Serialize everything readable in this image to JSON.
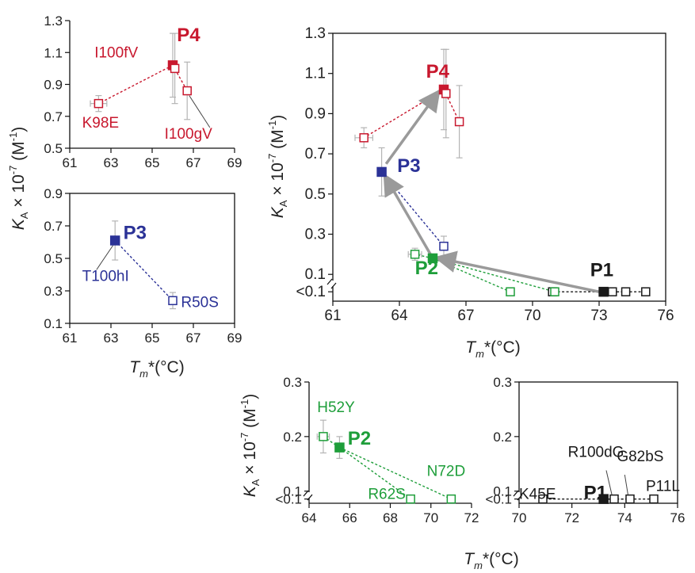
{
  "axis_labels": {
    "ka": "K",
    "ka_sub": "A",
    "ka_rest": " × 10",
    "ka_exp": "-7",
    "ka_unit": " (M",
    "ka_unit_exp": "-1",
    "ka_close": ")",
    "tm": "T",
    "tm_sub": "m",
    "tm_rest": "*(°C)"
  },
  "colors": {
    "P1": "#1a1a1a",
    "P2": "#1e9e3a",
    "P3": "#2b3297",
    "P4": "#c8182e",
    "arrow": "#9a9a9a",
    "errorbar": "#b4b4b4"
  },
  "chart_data": [
    {
      "type": "scatter",
      "panel": "main",
      "xlabel": "Tm*(°C)",
      "ylabel": "KA × 10-7 (M-1)",
      "xlim": [
        61,
        76
      ],
      "ylim": [
        0.05,
        1.3
      ],
      "x_ticks": [
        "61",
        "64",
        "67",
        "70",
        "73",
        "76"
      ],
      "x_tick_values": [
        61,
        64,
        67,
        70,
        73,
        76
      ],
      "y_ticks": [
        "<0.1",
        "0.1",
        "0.3",
        "0.5",
        "0.7",
        "0.9",
        "1.1",
        "1.3"
      ],
      "y_tick_values": [
        0.05,
        0.1,
        0.3,
        0.5,
        0.7,
        0.9,
        1.1,
        1.3
      ],
      "axis_break_y": true,
      "labels": [
        {
          "text": "P4",
          "x": 65.2,
          "y": 1.08,
          "color": "P4"
        },
        {
          "text": "P3",
          "x": 63.9,
          "y": 0.61,
          "color": "P3"
        },
        {
          "text": "P2",
          "x": 64.7,
          "y": 0.1,
          "color": "P2"
        },
        {
          "text": "P1",
          "x": 72.6,
          "y": 0.09,
          "color": "P1"
        }
      ],
      "series": [
        {
          "name": "P1",
          "color": "P1",
          "parent": [
            73.2,
            0.05
          ],
          "points": [
            {
              "x": 73.2,
              "y": 0.05,
              "filled": true
            },
            {
              "x": 70.9,
              "y": 0.05
            },
            {
              "x": 73.6,
              "y": 0.05
            },
            {
              "x": 74.2,
              "y": 0.05
            },
            {
              "x": 75.1,
              "y": 0.05
            }
          ]
        },
        {
          "name": "P2",
          "color": "P2",
          "parent": [
            65.5,
            0.18
          ],
          "points": [
            {
              "x": 65.5,
              "y": 0.18,
              "filled": true,
              "yerr": 0.02
            },
            {
              "x": 64.7,
              "y": 0.2,
              "xerr": 0.3,
              "yerr": 0.03
            },
            {
              "x": 69.0,
              "y": 0.05
            },
            {
              "x": 71.0,
              "y": 0.05
            }
          ]
        },
        {
          "name": "P3",
          "color": "P3",
          "parent": [
            63.2,
            0.61
          ],
          "points": [
            {
              "x": 63.2,
              "y": 0.61,
              "filled": true,
              "yerr": 0.12
            },
            {
              "x": 66.0,
              "y": 0.24,
              "yerr": 0.05
            }
          ]
        },
        {
          "name": "P4",
          "color": "P4",
          "parent": [
            66.0,
            1.02
          ],
          "points": [
            {
              "x": 66.0,
              "y": 1.02,
              "filled": true,
              "yerr": 0.2
            },
            {
              "x": 62.4,
              "y": 0.78,
              "xerr": 0.4,
              "yerr": 0.05
            },
            {
              "x": 66.1,
              "y": 1.0,
              "yerr": 0.22
            },
            {
              "x": 66.7,
              "y": 0.86,
              "yerr": 0.18
            }
          ]
        }
      ],
      "arrows": [
        {
          "from": [
            73.0,
            0.055
          ],
          "to": [
            65.8,
            0.18
          ]
        },
        {
          "from": [
            65.4,
            0.2
          ],
          "to": [
            63.4,
            0.58
          ]
        },
        {
          "from": [
            63.4,
            0.65
          ],
          "to": [
            65.7,
            1.0
          ]
        }
      ]
    },
    {
      "type": "scatter",
      "panel": "P4-inset",
      "xlim": [
        61,
        69
      ],
      "ylim": [
        0.5,
        1.3
      ],
      "x_ticks": [
        "61",
        "63",
        "65",
        "67",
        "69"
      ],
      "x_tick_values": [
        61,
        63,
        65,
        67,
        69
      ],
      "y_ticks": [
        "0.5",
        "0.7",
        "0.9",
        "1.1",
        "1.3"
      ],
      "y_tick_values": [
        0.5,
        0.7,
        0.9,
        1.1,
        1.3
      ],
      "series": [
        {
          "name": "P4",
          "color": "P4",
          "parent": [
            66.0,
            1.02
          ],
          "points": [
            {
              "x": 66.0,
              "y": 1.02,
              "filled": true,
              "yerr": 0.2
            },
            {
              "x": 62.4,
              "y": 0.78,
              "xerr": 0.4,
              "yerr": 0.05
            },
            {
              "x": 66.1,
              "y": 1.0,
              "yerr": 0.22
            },
            {
              "x": 66.7,
              "y": 0.86,
              "yerr": 0.18
            }
          ]
        }
      ],
      "labels": [
        {
          "text": "P4",
          "x": 66.2,
          "y": 1.17,
          "color": "P4",
          "bold": true
        },
        {
          "text": "I100fV",
          "x": 62.2,
          "y": 1.07,
          "color": "P4"
        },
        {
          "text": "K98E",
          "x": 61.6,
          "y": 0.63,
          "color": "P4"
        },
        {
          "text": "I100gV",
          "x": 65.6,
          "y": 0.56,
          "color": "P4"
        }
      ],
      "leaders": [
        {
          "from": [
            66.8,
            0.83
          ],
          "to": [
            67.8,
            0.63
          ]
        }
      ]
    },
    {
      "type": "scatter",
      "panel": "P3-inset",
      "xlim": [
        61,
        69
      ],
      "ylim": [
        0.1,
        0.9
      ],
      "x_ticks": [
        "61",
        "63",
        "65",
        "67",
        "69"
      ],
      "x_tick_values": [
        61,
        63,
        65,
        67,
        69
      ],
      "y_ticks": [
        "0.1",
        "0.3",
        "0.5",
        "0.7",
        "0.9"
      ],
      "y_tick_values": [
        0.1,
        0.3,
        0.5,
        0.7,
        0.9
      ],
      "series": [
        {
          "name": "P3",
          "color": "P3",
          "parent": [
            63.2,
            0.61
          ],
          "points": [
            {
              "x": 63.2,
              "y": 0.61,
              "filled": true,
              "yerr": 0.12
            },
            {
              "x": 66.0,
              "y": 0.24,
              "yerr": 0.05
            }
          ]
        }
      ],
      "labels": [
        {
          "text": "P3",
          "x": 63.6,
          "y": 0.62,
          "color": "P3",
          "bold": true
        },
        {
          "text": "T100hI",
          "x": 61.6,
          "y": 0.36,
          "color": "P3"
        },
        {
          "text": "R50S",
          "x": 66.4,
          "y": 0.2,
          "color": "P3"
        }
      ],
      "leaders": [
        {
          "from": [
            63.1,
            0.58
          ],
          "to": [
            62.3,
            0.43
          ]
        }
      ]
    },
    {
      "type": "scatter",
      "panel": "P2-inset",
      "xlim": [
        64,
        72
      ],
      "ylim": [
        0.05,
        0.3
      ],
      "x_ticks": [
        "64",
        "66",
        "68",
        "70",
        "72"
      ],
      "x_tick_values": [
        64,
        66,
        68,
        70,
        72
      ],
      "y_ticks": [
        "<0.1",
        "0.1",
        "0.2",
        "0.3"
      ],
      "y_tick_values": [
        0.05,
        0.1,
        0.2,
        0.3
      ],
      "axis_break_y": true,
      "series": [
        {
          "name": "P2",
          "color": "P2",
          "parent": [
            65.5,
            0.18
          ],
          "points": [
            {
              "x": 65.5,
              "y": 0.18,
              "filled": true,
              "yerr": 0.02
            },
            {
              "x": 64.7,
              "y": 0.2,
              "xerr": 0.3,
              "yerr": 0.03
            },
            {
              "x": 69.0,
              "y": 0.05
            },
            {
              "x": 71.0,
              "y": 0.05
            }
          ]
        }
      ],
      "labels": [
        {
          "text": "P2",
          "x": 65.9,
          "y": 0.185,
          "color": "P2",
          "bold": true
        },
        {
          "text": "H52Y",
          "x": 64.4,
          "y": 0.245,
          "color": "P2"
        },
        {
          "text": "N72D",
          "x": 69.8,
          "y": 0.128,
          "color": "P2"
        },
        {
          "text": "R62S",
          "x": 66.9,
          "y": 0.025,
          "color": "P2"
        }
      ]
    },
    {
      "type": "scatter",
      "panel": "P1-inset",
      "xlim": [
        70,
        76
      ],
      "ylim": [
        0.05,
        0.3
      ],
      "x_ticks": [
        "70",
        "72",
        "74",
        "76"
      ],
      "x_tick_values": [
        70,
        72,
        74,
        76
      ],
      "y_ticks": [
        "<0.1",
        "0.1",
        "0.2",
        "0.3"
      ],
      "y_tick_values": [
        0.05,
        0.1,
        0.2,
        0.3
      ],
      "axis_break_y": true,
      "series": [
        {
          "name": "P1",
          "color": "P1",
          "parent": [
            73.2,
            0.05
          ],
          "points": [
            {
              "x": 73.2,
              "y": 0.05,
              "filled": true
            },
            {
              "x": 70.9,
              "y": 0.05
            },
            {
              "x": 73.6,
              "y": 0.05
            },
            {
              "x": 74.2,
              "y": 0.05
            },
            {
              "x": 75.1,
              "y": 0.05
            }
          ]
        }
      ],
      "labels": [
        {
          "text": "P1",
          "x": 72.45,
          "y": 0.065,
          "color": "P1",
          "bold": true
        },
        {
          "text": "K45E",
          "x": 70.0,
          "y": 0.073,
          "color": "P1"
        },
        {
          "text": "R100dG",
          "x": 71.85,
          "y": 0.163,
          "color": "P1"
        },
        {
          "text": "G82bS",
          "x": 73.7,
          "y": 0.155,
          "color": "P1"
        },
        {
          "text": "P11L",
          "x": 74.8,
          "y": 0.1,
          "color": "P1"
        }
      ],
      "leaders": [
        {
          "from": [
            73.55,
            0.055
          ],
          "to": [
            73.3,
            0.138
          ]
        },
        {
          "from": [
            74.15,
            0.055
          ],
          "to": [
            74.0,
            0.13
          ]
        },
        {
          "from": [
            75.05,
            0.055
          ],
          "to": [
            75.15,
            0.078
          ]
        }
      ]
    }
  ]
}
